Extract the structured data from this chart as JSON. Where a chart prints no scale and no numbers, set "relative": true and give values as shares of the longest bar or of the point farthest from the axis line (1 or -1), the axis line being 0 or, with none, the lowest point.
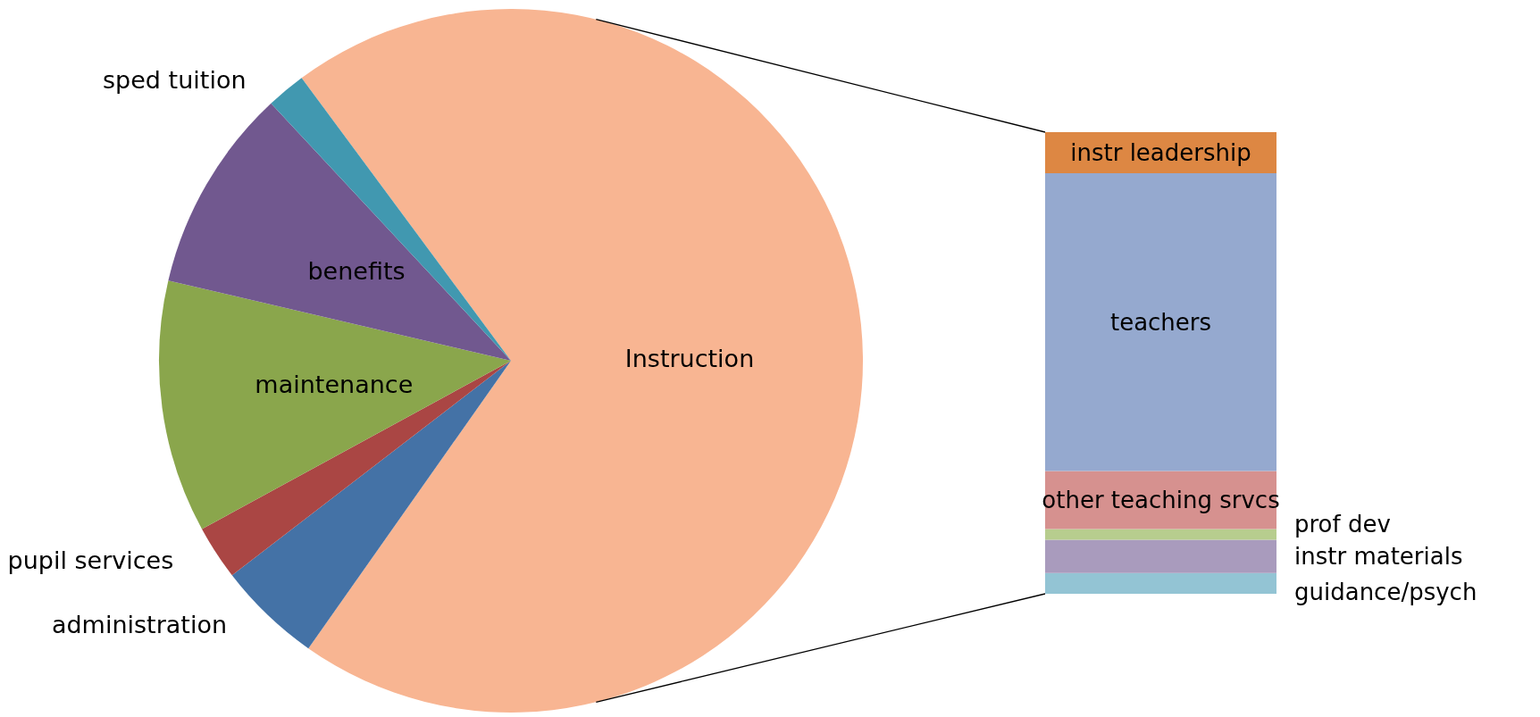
{
  "chart_data": [
    {
      "type": "pie",
      "categories": [
        "Instruction",
        "administration",
        "pupil services",
        "maintenance",
        "benefits",
        "sped tuition"
      ],
      "values": [
        69.9,
        4.8,
        2.5,
        11.6,
        9.4,
        1.8
      ],
      "colors": [
        "#f8b592",
        "#4472a6",
        "#aa4644",
        "#8aa64c",
        "#71588f",
        "#4198b0"
      ]
    },
    {
      "type": "bar",
      "stacked": true,
      "relative": true,
      "categories": [
        null
      ],
      "series": [
        {
          "name": "guidance/psych",
          "color": "#93c4d4",
          "values": [
            0.045
          ]
        },
        {
          "name": "instr materials",
          "color": "#a99bbd",
          "values": [
            0.072
          ]
        },
        {
          "name": "prof dev",
          "color": "#b7cd8e",
          "values": [
            0.023
          ]
        },
        {
          "name": "other teaching srvcs",
          "color": "#d6918f",
          "values": [
            0.126
          ]
        },
        {
          "name": "teachers",
          "color": "#95a9cf",
          "values": [
            0.645
          ]
        },
        {
          "name": "instr leadership",
          "color": "#dd8743",
          "values": [
            0.089
          ]
        }
      ]
    }
  ]
}
